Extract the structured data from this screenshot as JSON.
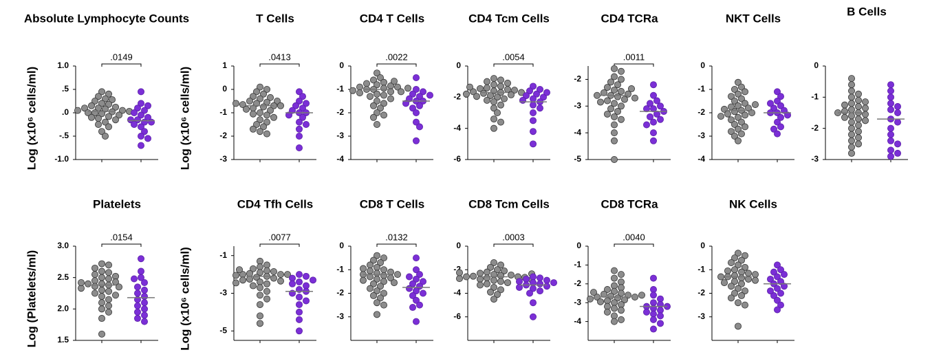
{
  "chart_data": [
    {
      "type": "strip",
      "title": "Absolute Lymphocyte Counts",
      "ylabel": "Log (x10⁶ cells/ml)",
      "annotation": ".0149",
      "ylim": [
        -1,
        1
      ],
      "yticks": [
        {
          "value": -1,
          "label": "-1.0"
        },
        {
          "value": -0.5,
          "label": "-.5"
        },
        {
          "value": 0,
          "label": ".0"
        },
        {
          "value": 0.5,
          "label": ".5"
        },
        {
          "value": 1,
          "label": "1.0"
        }
      ],
      "series": [
        {
          "color": "#8c8c8c",
          "median": 0.03,
          "values": [
            0.45,
            0.4,
            0.35,
            0.3,
            0.28,
            0.25,
            0.2,
            0.18,
            0.15,
            0.12,
            0.1,
            0.1,
            0.08,
            0.05,
            0.05,
            0.03,
            0.02,
            0,
            0,
            -0.02,
            -0.05,
            -0.08,
            -0.1,
            -0.12,
            -0.15,
            -0.2,
            -0.25,
            -0.3,
            -0.4,
            -0.5
          ]
        },
        {
          "color": "#7b2fd6",
          "median": -0.17,
          "values": [
            0.45,
            0.2,
            0.15,
            0.1,
            0.05,
            0,
            -0.05,
            -0.1,
            -0.15,
            -0.15,
            -0.2,
            -0.2,
            -0.25,
            -0.3,
            -0.4,
            -0.5,
            -0.55,
            -0.7
          ]
        }
      ]
    },
    {
      "type": "strip",
      "title": "T Cells",
      "ylabel": "Log (x10⁶ cells/ml)",
      "annotation": ".0413",
      "ylim": [
        -3,
        1
      ],
      "yticks": [
        -3,
        -2,
        -1,
        0,
        1
      ],
      "series": [
        {
          "color": "#8c8c8c",
          "median": -0.7,
          "values": [
            0.1,
            0,
            -0.1,
            -0.2,
            -0.3,
            -0.35,
            -0.4,
            -0.5,
            -0.5,
            -0.55,
            -0.6,
            -0.65,
            -0.7,
            -0.7,
            -0.75,
            -0.8,
            -0.85,
            -0.9,
            -1.0,
            -1.05,
            -1.1,
            -1.2,
            -1.3,
            -1.4,
            -1.5,
            -1.6,
            -1.7,
            -1.8,
            -1.9,
            -0.6
          ]
        },
        {
          "color": "#7b2fd6",
          "median": -1.0,
          "values": [
            -0.1,
            -0.3,
            -0.5,
            -0.6,
            -0.7,
            -0.8,
            -0.9,
            -1.0,
            -1.0,
            -1.1,
            -1.2,
            -1.4,
            -1.5,
            -1.7,
            -2.0,
            -2.5
          ]
        }
      ]
    },
    {
      "type": "strip",
      "title": "CD4 T Cells",
      "annotation": ".0022",
      "ylim": [
        -4,
        0
      ],
      "yticks": [
        -4,
        -3,
        -2,
        -1,
        0
      ],
      "series": [
        {
          "color": "#8c8c8c",
          "median": -1.0,
          "values": [
            -0.3,
            -0.5,
            -0.6,
            -0.7,
            -0.75,
            -0.8,
            -0.85,
            -0.9,
            -0.9,
            -0.95,
            -1.0,
            -1.0,
            -1.05,
            -1.1,
            -1.1,
            -1.2,
            -1.25,
            -1.3,
            -1.4,
            -1.5,
            -1.6,
            -1.7,
            -1.8,
            -2.0,
            -2.1,
            -2.2,
            -2.5,
            -0.95,
            -1.15,
            -0.65
          ]
        },
        {
          "color": "#7b2fd6",
          "median": -1.5,
          "values": [
            -0.5,
            -1.0,
            -1.1,
            -1.2,
            -1.3,
            -1.4,
            -1.5,
            -1.5,
            -1.6,
            -1.7,
            -1.8,
            -2.0,
            -2.4,
            -2.6,
            -3.2,
            -1.25
          ]
        }
      ]
    },
    {
      "type": "strip",
      "title": "CD4 Tcm Cells",
      "annotation": ".0054",
      "ylim": [
        -6,
        0
      ],
      "yticks": [
        -6,
        -4,
        -2,
        0
      ],
      "series": [
        {
          "color": "#8c8c8c",
          "median": -1.7,
          "values": [
            -0.8,
            -0.9,
            -1.0,
            -1.1,
            -1.2,
            -1.3,
            -1.4,
            -1.45,
            -1.5,
            -1.55,
            -1.6,
            -1.65,
            -1.7,
            -1.7,
            -1.75,
            -1.8,
            -1.85,
            -1.9,
            -2.0,
            -2.1,
            -2.2,
            -2.3,
            -2.5,
            -2.7,
            -3.0,
            -3.4,
            -3.6,
            -4.0,
            -1.35,
            -1.95
          ]
        },
        {
          "color": "#7b2fd6",
          "median": -2.3,
          "values": [
            -1.3,
            -1.5,
            -1.6,
            -1.8,
            -1.9,
            -2.0,
            -2.1,
            -2.2,
            -2.3,
            -2.5,
            -2.7,
            -3.0,
            -3.5,
            -4.2,
            -5.0,
            -1.7
          ]
        }
      ]
    },
    {
      "type": "strip",
      "title": "CD4 TCRa",
      "annotation": ".0011",
      "ylim": [
        -5,
        -1.5
      ],
      "yticks": [
        -5,
        -4,
        -3,
        -2
      ],
      "series": [
        {
          "color": "#8c8c8c",
          "median": -2.6,
          "values": [
            -1.6,
            -1.7,
            -1.9,
            -2.0,
            -2.1,
            -2.2,
            -2.3,
            -2.4,
            -2.45,
            -2.5,
            -2.55,
            -2.6,
            -2.6,
            -2.65,
            -2.7,
            -2.75,
            -2.8,
            -2.9,
            -3.0,
            -3.1,
            -3.2,
            -3.3,
            -3.4,
            -3.5,
            -3.7,
            -4.0,
            -4.3,
            -5.0,
            -2.35,
            -2.85
          ]
        },
        {
          "color": "#7b2fd6",
          "median": -3.2,
          "values": [
            -2.2,
            -2.6,
            -2.8,
            -2.9,
            -3.0,
            -3.1,
            -3.1,
            -3.2,
            -3.3,
            -3.4,
            -3.5,
            -3.6,
            -3.7,
            -4.0,
            -4.3
          ]
        }
      ]
    },
    {
      "type": "strip",
      "title": "NKT Cells",
      "ylim": [
        -4,
        0
      ],
      "yticks": [
        -4,
        -3,
        -2,
        -1,
        0
      ],
      "series": [
        {
          "color": "#8c8c8c",
          "median": -1.9,
          "values": [
            -0.7,
            -0.9,
            -1.0,
            -1.1,
            -1.2,
            -1.3,
            -1.4,
            -1.5,
            -1.6,
            -1.7,
            -1.75,
            -1.8,
            -1.85,
            -1.9,
            -1.95,
            -2.0,
            -2.05,
            -2.1,
            -2.2,
            -2.3,
            -2.4,
            -2.5,
            -2.6,
            -2.7,
            -2.8,
            -2.9,
            -3.0,
            -3.2,
            -1.65,
            -2.15
          ]
        },
        {
          "color": "#7b2fd6",
          "median": -2.0,
          "values": [
            -1.1,
            -1.3,
            -1.5,
            -1.7,
            -1.8,
            -1.9,
            -2.0,
            -2.0,
            -2.1,
            -2.2,
            -2.4,
            -2.6,
            -2.7,
            -2.9,
            -1.6
          ]
        }
      ]
    },
    {
      "type": "strip",
      "title": "B Cells",
      "ylim": [
        -3,
        0
      ],
      "yticks": [
        -3,
        -2,
        -1,
        0
      ],
      "series": [
        {
          "color": "#8c8c8c",
          "median": -1.5,
          "values": [
            -0.4,
            -0.6,
            -0.8,
            -0.9,
            -1.0,
            -1.1,
            -1.2,
            -1.25,
            -1.3,
            -1.35,
            -1.4,
            -1.45,
            -1.5,
            -1.5,
            -1.55,
            -1.6,
            -1.65,
            -1.7,
            -1.8,
            -1.9,
            -2.0,
            -2.1,
            -2.2,
            -2.3,
            -2.4,
            -2.5,
            -2.6,
            -2.8,
            -1.15,
            -1.75
          ]
        },
        {
          "color": "#7b2fd6",
          "median": -1.7,
          "values": [
            -0.6,
            -0.8,
            -1.0,
            -1.2,
            -1.3,
            -1.4,
            -1.5,
            -1.7,
            -1.8,
            -2.0,
            -2.2,
            -2.4,
            -2.5,
            -2.7,
            -2.8,
            -2.9
          ]
        }
      ]
    },
    {
      "type": "strip",
      "title": "Platelets",
      "ylabel": "Log (Platelets/ml)",
      "annotation": ".0154",
      "ylim": [
        1.5,
        3
      ],
      "yticks": [
        1.5,
        {
          "value": 2,
          "label": "2.0"
        },
        2.5,
        {
          "value": 3,
          "label": "3.0"
        }
      ],
      "series": [
        {
          "color": "#8c8c8c",
          "median": 2.38,
          "values": [
            2.72,
            2.7,
            2.65,
            2.6,
            2.58,
            2.55,
            2.52,
            2.5,
            2.48,
            2.45,
            2.43,
            2.4,
            2.4,
            2.38,
            2.36,
            2.35,
            2.33,
            2.3,
            2.28,
            2.25,
            2.22,
            2.2,
            2.15,
            2.1,
            2.05,
            2.0,
            1.95,
            1.85,
            1.6,
            2.42
          ]
        },
        {
          "color": "#7b2fd6",
          "median": 2.18,
          "values": [
            2.8,
            2.6,
            2.5,
            2.42,
            2.35,
            2.3,
            2.25,
            2.2,
            2.15,
            2.1,
            2.05,
            2.0,
            1.95,
            1.9,
            1.85,
            1.8,
            2.48
          ]
        }
      ]
    },
    {
      "type": "strip",
      "title": "CD4 Tfh Cells",
      "ylabel": "Log (x10⁶ cells/ml)",
      "annotation": ".0077",
      "ylim": [
        -5.5,
        -0.5
      ],
      "yticks": [
        -5,
        -3,
        -1
      ],
      "series": [
        {
          "color": "#8c8c8c",
          "median": -2.1,
          "values": [
            -1.3,
            -1.5,
            -1.6,
            -1.7,
            -1.8,
            -1.85,
            -1.9,
            -1.95,
            -2.0,
            -2.0,
            -2.05,
            -2.1,
            -2.15,
            -2.2,
            -2.25,
            -2.3,
            -2.4,
            -2.5,
            -2.6,
            -2.7,
            -2.9,
            -3.1,
            -3.3,
            -3.6,
            -4.2,
            -4.6,
            -1.75,
            -2.35,
            -2.45,
            -2.0
          ]
        },
        {
          "color": "#7b2fd6",
          "median": -2.9,
          "values": [
            -2.0,
            -2.1,
            -2.2,
            -2.4,
            -2.6,
            -2.8,
            -2.9,
            -3.0,
            -3.2,
            -3.4,
            -3.6,
            -4.0,
            -4.4,
            -5.0,
            -2.5,
            -2.3
          ]
        }
      ]
    },
    {
      "type": "strip",
      "title": "CD8 T Cells",
      "annotation": ".0132",
      "ylim": [
        -4,
        0
      ],
      "yticks": [
        -3,
        -2,
        -1,
        0
      ],
      "series": [
        {
          "color": "#8c8c8c",
          "median": -1.2,
          "values": [
            -0.4,
            -0.5,
            -0.6,
            -0.7,
            -0.8,
            -0.9,
            -1.0,
            -1.05,
            -1.1,
            -1.15,
            -1.2,
            -1.2,
            -1.25,
            -1.3,
            -1.35,
            -1.4,
            -1.5,
            -1.6,
            -1.7,
            -1.8,
            -1.9,
            -2.0,
            -2.1,
            -2.2,
            -2.4,
            -2.5,
            -2.9,
            -0.95,
            -1.45,
            -1.55
          ]
        },
        {
          "color": "#7b2fd6",
          "median": -1.75,
          "values": [
            -0.5,
            -1.0,
            -1.2,
            -1.4,
            -1.5,
            -1.6,
            -1.7,
            -1.8,
            -1.9,
            -2.0,
            -2.1,
            -2.3,
            -2.5,
            -2.6,
            -3.2,
            -1.3
          ]
        }
      ]
    },
    {
      "type": "strip",
      "title": "CD8 Tcm Cells",
      "annotation": ".0003",
      "ylim": [
        -8,
        0
      ],
      "yticks": [
        -6,
        -4,
        -2,
        0
      ],
      "series": [
        {
          "color": "#8c8c8c",
          "median": -2.6,
          "values": [
            -1.4,
            -1.6,
            -1.8,
            -2.0,
            -2.1,
            -2.2,
            -2.3,
            -2.4,
            -2.45,
            -2.5,
            -2.55,
            -2.6,
            -2.6,
            -2.65,
            -2.7,
            -2.75,
            -2.8,
            -2.9,
            -3.0,
            -3.1,
            -3.2,
            -3.3,
            -3.5,
            -3.7,
            -3.9,
            -4.1,
            -4.5,
            -2.35,
            -2.85,
            -2.25
          ]
        },
        {
          "color": "#7b2fd6",
          "median": -3.3,
          "values": [
            -2.6,
            -2.7,
            -2.8,
            -2.9,
            -3.0,
            -3.1,
            -3.2,
            -3.3,
            -3.4,
            -3.5,
            -3.6,
            -3.8,
            -4.0,
            -4.8,
            -6.0,
            -3.1
          ]
        }
      ]
    },
    {
      "type": "strip",
      "title": "CD8 TCRa",
      "annotation": ".0040",
      "ylim": [
        -5,
        0
      ],
      "yticks": [
        -4,
        -3,
        -2,
        -1,
        0
      ],
      "series": [
        {
          "color": "#8c8c8c",
          "median": -2.7,
          "values": [
            -1.3,
            -1.5,
            -1.7,
            -1.9,
            -2.1,
            -2.2,
            -2.3,
            -2.4,
            -2.5,
            -2.55,
            -2.6,
            -2.65,
            -2.7,
            -2.7,
            -2.75,
            -2.8,
            -2.85,
            -2.9,
            -3.0,
            -3.1,
            -3.2,
            -3.3,
            -3.4,
            -3.5,
            -3.7,
            -3.9,
            -4.0,
            -2.45,
            -2.95,
            -2.6
          ]
        },
        {
          "color": "#7b2fd6",
          "median": -3.2,
          "values": [
            -1.7,
            -2.3,
            -2.6,
            -2.8,
            -3.0,
            -3.1,
            -3.2,
            -3.2,
            -3.3,
            -3.4,
            -3.5,
            -3.6,
            -3.7,
            -3.9,
            -4.1,
            -4.4
          ]
        }
      ]
    },
    {
      "type": "strip",
      "title": "NK Cells",
      "ylim": [
        -4,
        0
      ],
      "yticks": [
        -3,
        -2,
        -1,
        0
      ],
      "series": [
        {
          "color": "#8c8c8c",
          "median": -1.3,
          "values": [
            -0.3,
            -0.4,
            -0.5,
            -0.6,
            -0.7,
            -0.8,
            -0.9,
            -1.0,
            -1.05,
            -1.1,
            -1.15,
            -1.2,
            -1.25,
            -1.3,
            -1.3,
            -1.35,
            -1.4,
            -1.45,
            -1.5,
            -1.6,
            -1.7,
            -1.8,
            -1.9,
            -2.0,
            -2.1,
            -2.2,
            -2.4,
            -2.5,
            -3.4,
            -1.55
          ]
        },
        {
          "color": "#7b2fd6",
          "median": -1.6,
          "values": [
            -0.8,
            -1.0,
            -1.1,
            -1.2,
            -1.3,
            -1.4,
            -1.5,
            -1.6,
            -1.7,
            -1.8,
            -2.0,
            -2.1,
            -2.3,
            -2.5,
            -2.7,
            -1.9
          ]
        }
      ]
    }
  ]
}
